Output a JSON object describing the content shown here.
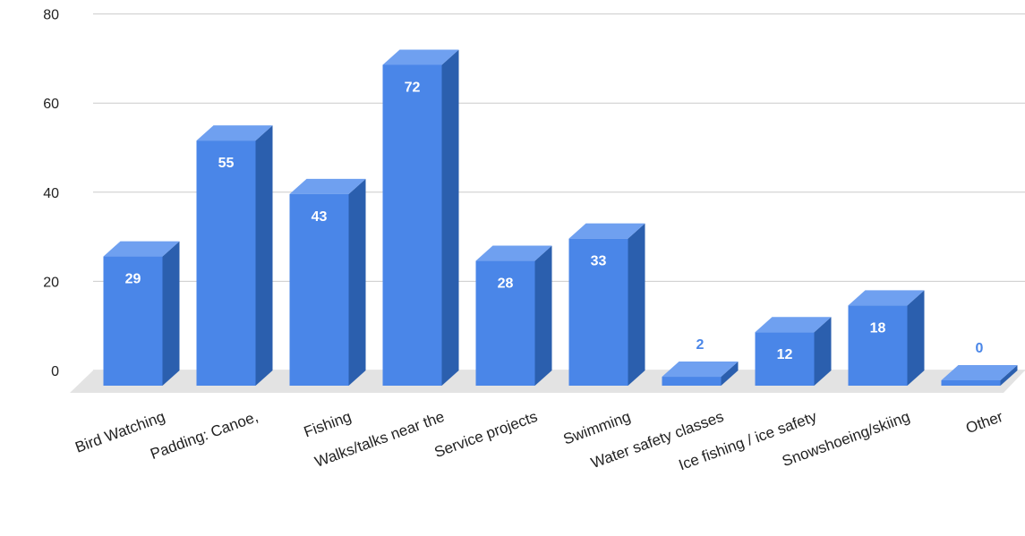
{
  "chart_data": {
    "type": "bar",
    "style": "3d",
    "title": "",
    "xlabel": "",
    "ylabel": "",
    "categories": [
      "Bird Watching",
      "Padding: Canoe,",
      "Fishing",
      "Walks/talks near the",
      "Service projects",
      "Swimming",
      "Water safety classes",
      "Ice fishing / ice safety",
      "Snowshoeing/skiing",
      "Other"
    ],
    "values": [
      29,
      55,
      43,
      72,
      28,
      33,
      2,
      12,
      18,
      0
    ],
    "data_labels": [
      "29",
      "55",
      "43",
      "72",
      "28",
      "33",
      "2",
      "12",
      "18",
      "0"
    ],
    "ylim": [
      0,
      80
    ],
    "yticks": [
      0,
      20,
      40,
      60,
      80
    ],
    "ytick_labels": [
      "0",
      "20",
      "40",
      "60",
      "80"
    ],
    "grid": true,
    "legend": "none",
    "colors": {
      "bar_front": "#4a86e8",
      "bar_top": "#6fa0f0",
      "bar_side": "#2b5fae",
      "floor": "#e3e3e3",
      "label_inside": "#ffffff",
      "label_outside": "#4a86e8"
    }
  }
}
